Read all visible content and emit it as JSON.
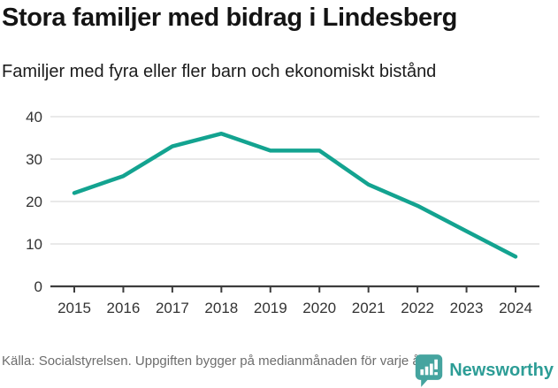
{
  "header": {
    "title": "Stora familjer med bidrag i Lindesberg",
    "subtitle": "Familjer med fyra eller fler barn och ekonomiskt bistånd"
  },
  "chart_data": {
    "type": "line",
    "title": "Stora familjer med bidrag i Lindesberg",
    "subtitle": "Familjer med fyra eller fler barn och ekonomiskt bistånd",
    "categories": [
      "2015",
      "2016",
      "2017",
      "2018",
      "2019",
      "2020",
      "2021",
      "2022",
      "2023",
      "2024"
    ],
    "values": [
      22,
      26,
      33,
      36,
      32,
      32,
      24,
      19,
      13,
      7
    ],
    "xlabel": "",
    "ylabel": "",
    "ylim": [
      0,
      40
    ],
    "yticks": [
      0,
      10,
      20,
      30,
      40
    ],
    "grid": "horizontal",
    "legend": "none",
    "line_color": "#13a390",
    "gridline_color": "#dcdcdc",
    "axis_color": "#3d3d3d",
    "tick_label_color": "#333333"
  },
  "footer": {
    "source": "Källa: Socialstyrelsen. Uppgiften bygger på medianmånaden för varje år",
    "brand": "Newsworthy",
    "brand_color": "#2d9d96",
    "logo_bubble_color": "#45a49f"
  }
}
